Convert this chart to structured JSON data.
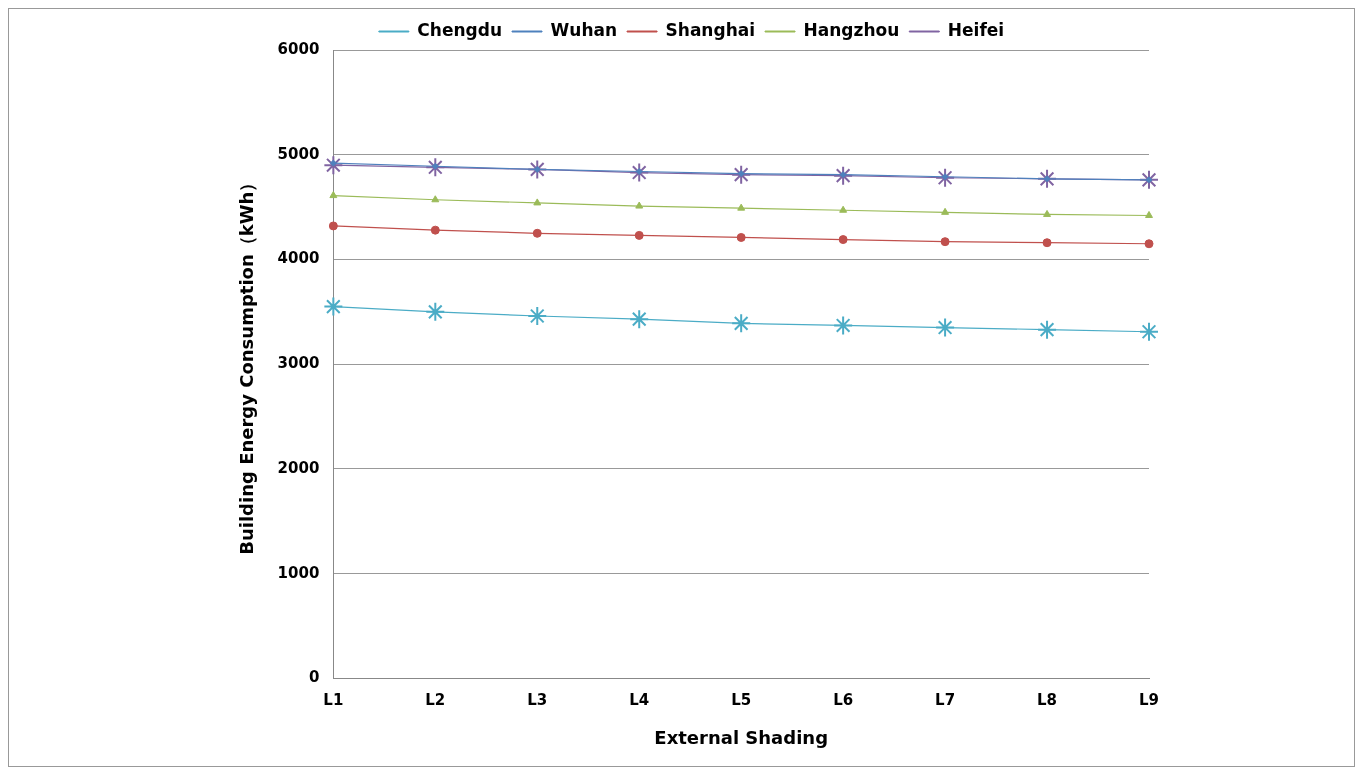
{
  "chart_data": {
    "type": "line",
    "xlabel": "External Shading",
    "ylabel": "Building Energy Consumption（kWh）",
    "categories": [
      "L1",
      "L2",
      "L3",
      "L4",
      "L5",
      "L6",
      "L7",
      "L8",
      "L9"
    ],
    "series": [
      {
        "name": "Chengdu",
        "color": "#4bacc6",
        "marker": "cross",
        "values": [
          3550,
          3500,
          3460,
          3430,
          3390,
          3370,
          3350,
          3330,
          3310
        ]
      },
      {
        "name": "Wuhan",
        "color": "#4f81bd",
        "marker": "diamond",
        "values": [
          4920,
          4890,
          4860,
          4840,
          4820,
          4810,
          4790,
          4770,
          4760
        ]
      },
      {
        "name": "Shanghai",
        "color": "#c0504d",
        "marker": "circle",
        "values": [
          4320,
          4280,
          4250,
          4230,
          4210,
          4190,
          4170,
          4160,
          4150
        ]
      },
      {
        "name": "Hangzhou",
        "color": "#9bbb59",
        "marker": "triangle",
        "values": [
          4610,
          4570,
          4540,
          4510,
          4490,
          4470,
          4450,
          4430,
          4420
        ]
      },
      {
        "name": "Heifei",
        "color": "#8064a2",
        "marker": "cross",
        "values": [
          4900,
          4880,
          4860,
          4830,
          4810,
          4800,
          4780,
          4770,
          4760
        ]
      }
    ],
    "ylim": [
      0,
      6000
    ],
    "yticks": [
      0,
      1000,
      2000,
      3000,
      4000,
      5000,
      6000
    ],
    "grid": "y",
    "legend": "top"
  }
}
